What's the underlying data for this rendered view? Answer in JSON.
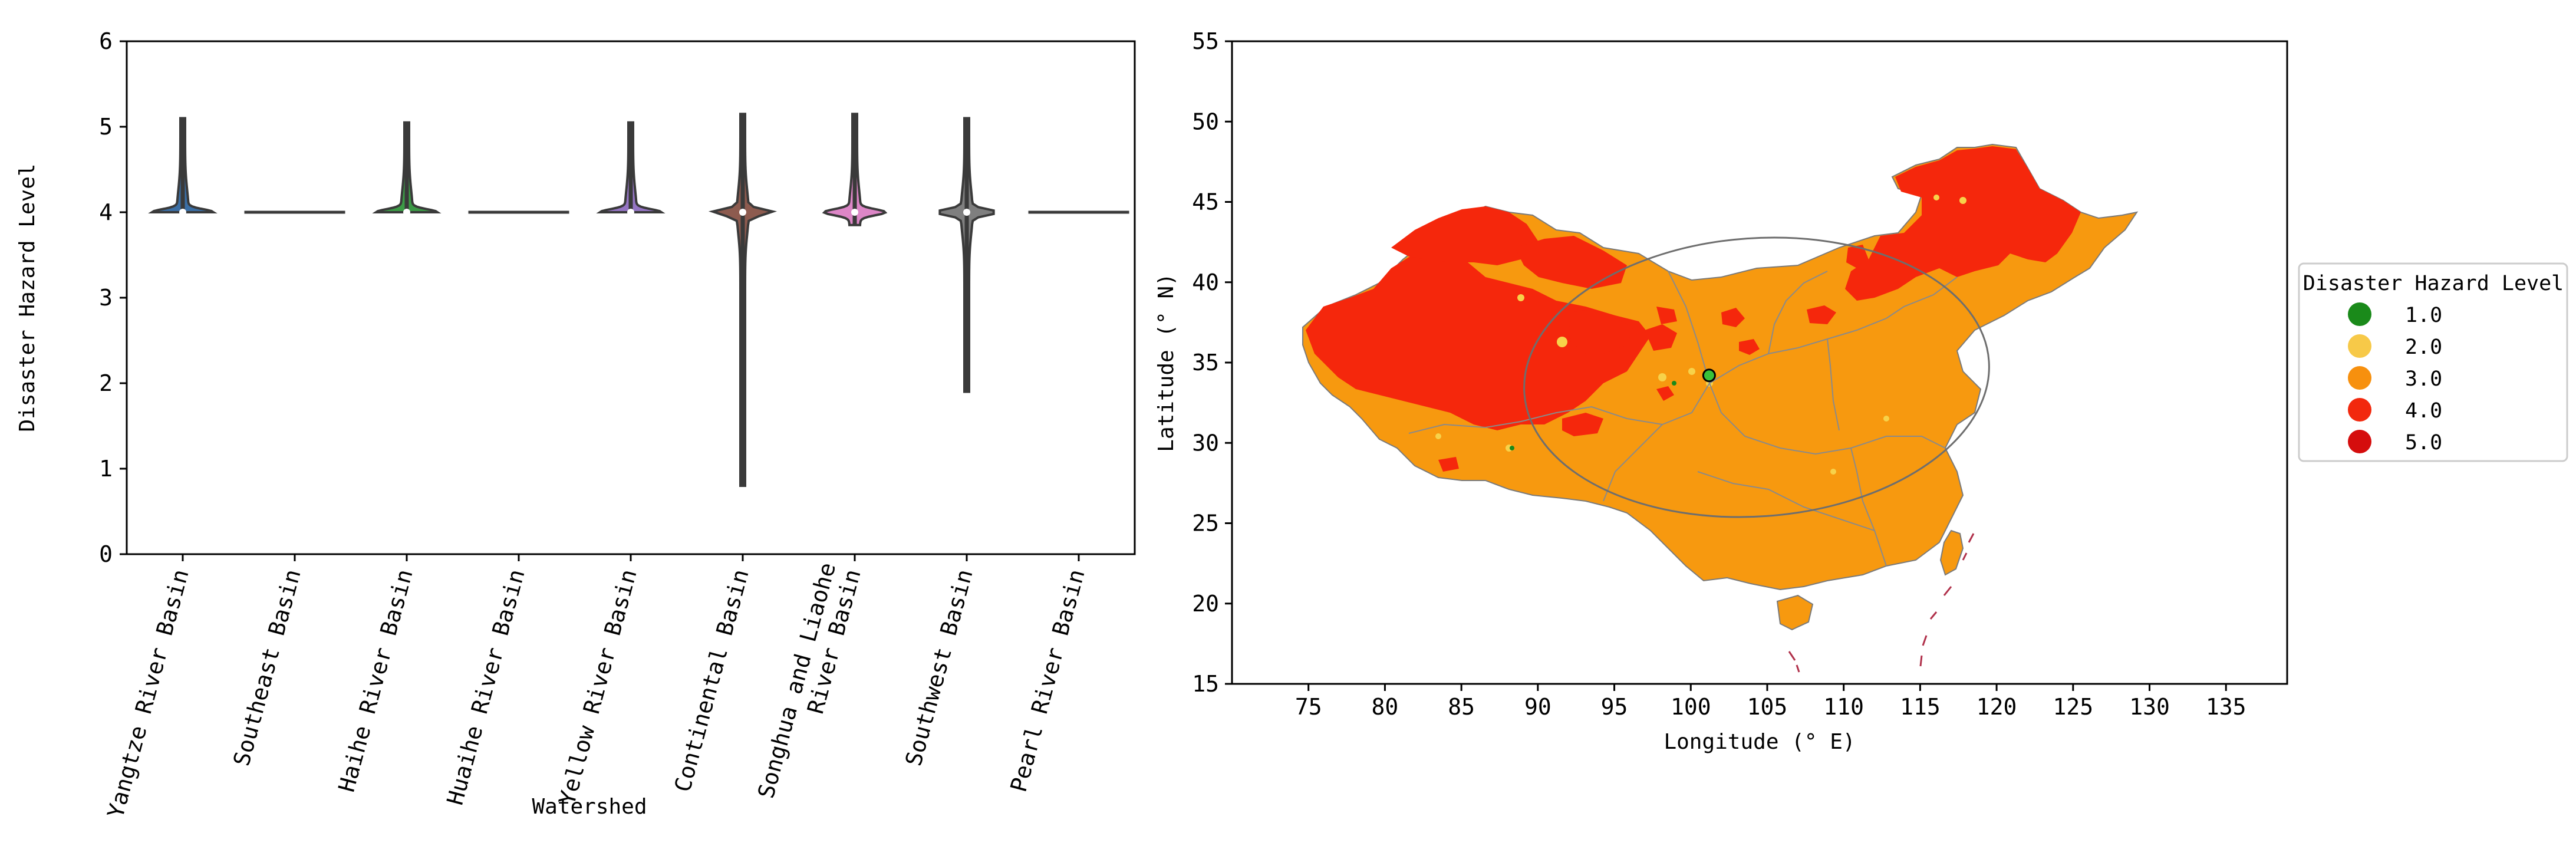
{
  "chart_data": [
    {
      "type": "violin",
      "xlabel": "Watershed",
      "ylabel": "Disaster Hazard Level",
      "ylim": [
        0,
        6
      ],
      "yticks": [
        "0",
        "1",
        "2",
        "3",
        "4",
        "5",
        "6"
      ],
      "categories": [
        {
          "lines": [
            "Yangtze River Basin"
          ],
          "min": 4.0,
          "max": 5.1,
          "median": 4.0,
          "color": "#3b6fa5"
        },
        {
          "lines": [
            "Southeast Basin"
          ],
          "min": 4.0,
          "max": 4.0,
          "median": 4.0,
          "color": "#e58a3a"
        },
        {
          "lines": [
            "Haihe River Basin"
          ],
          "min": 4.0,
          "max": 5.05,
          "median": 4.0,
          "color": "#3c9a46"
        },
        {
          "lines": [
            "Huaihe River Basin"
          ],
          "min": 4.0,
          "max": 4.0,
          "median": 4.0,
          "color": "#c9413b"
        },
        {
          "lines": [
            "Yellow River Basin"
          ],
          "min": 4.0,
          "max": 5.05,
          "median": 4.0,
          "color": "#9575c4"
        },
        {
          "lines": [
            "Continental Basin"
          ],
          "min": 0.8,
          "max": 5.15,
          "median": 4.0,
          "color": "#8d5b4f"
        },
        {
          "lines": [
            "Songhua and Liaohe",
            "River Basin"
          ],
          "min": 3.85,
          "max": 5.15,
          "median": 4.0,
          "color": "#dd86c7"
        },
        {
          "lines": [
            "Southwest Basin"
          ],
          "min": 1.9,
          "max": 5.1,
          "median": 4.0,
          "color": "#7f7f7f"
        },
        {
          "lines": [
            "Pearl River Basin"
          ],
          "min": 4.0,
          "max": 4.0,
          "median": 4.0,
          "color": "#bdbd30"
        }
      ]
    },
    {
      "type": "map",
      "xlabel": "Longitude (° E)",
      "ylabel": "Latitude (° N)",
      "xlim": [
        70,
        139
      ],
      "ylim": [
        15,
        55
      ],
      "xticks": [
        "75",
        "80",
        "85",
        "90",
        "95",
        "100",
        "105",
        "110",
        "115",
        "120",
        "125",
        "130",
        "135"
      ],
      "yticks": [
        "15",
        "20",
        "25",
        "30",
        "35",
        "40",
        "45",
        "50",
        "55"
      ],
      "centroid": {
        "lon": 101.2,
        "lat": 34.2
      },
      "legend": {
        "title": "Disaster Hazard Level",
        "items": [
          {
            "label": "1.0",
            "color": "#1a8a1a"
          },
          {
            "label": "2.0",
            "color": "#f7c948"
          },
          {
            "label": "3.0",
            "color": "#f7900e"
          },
          {
            "label": "4.0",
            "color": "#f2280d"
          },
          {
            "label": "5.0",
            "color": "#d50d0d"
          }
        ]
      }
    }
  ]
}
